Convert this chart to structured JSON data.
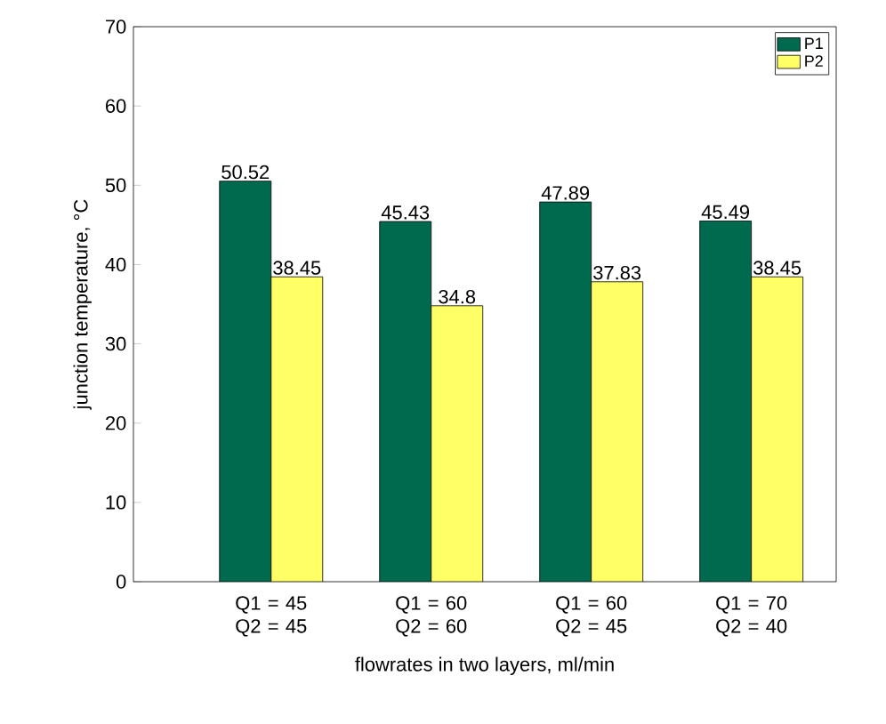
{
  "chart_data": {
    "type": "bar",
    "xlabel": "flowrates in two layers, ml/min",
    "ylabel": "junction temperature, °C",
    "categories": [
      "Q1 = 45 Q2 = 45",
      "Q1 = 60 Q2 = 60",
      "Q1 = 60 Q2 = 45",
      "Q1 = 70 Q2 = 40"
    ],
    "series": [
      {
        "name": "P1",
        "color": "#006a4e",
        "values": [
          50.52,
          45.43,
          47.89,
          45.49
        ],
        "value_labels": [
          "50.52",
          "45.43",
          "47.89",
          "45.49"
        ]
      },
      {
        "name": "P2",
        "color": "#ffff66",
        "values": [
          38.45,
          34.8,
          37.83,
          38.45
        ],
        "value_labels": [
          "38.45",
          "34.8",
          "37.83",
          "38.45"
        ]
      }
    ],
    "ylim": [
      0,
      70
    ],
    "yticks": [
      0,
      10,
      20,
      30,
      40,
      50,
      60,
      70
    ],
    "legend": "top right",
    "grid": false
  }
}
